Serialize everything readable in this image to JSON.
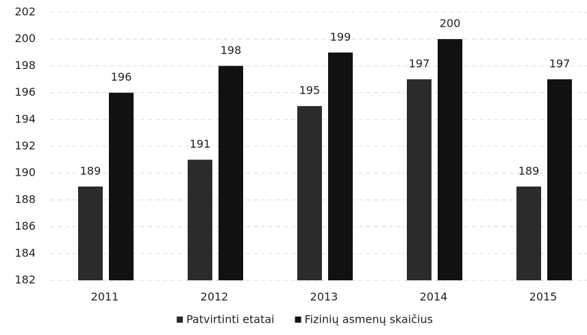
{
  "chart_data": {
    "type": "bar",
    "categories": [
      "2011",
      "2012",
      "2013",
      "2014",
      "2015"
    ],
    "series": [
      {
        "name": "Patvirtinti etatai",
        "color": "#2b2b2b",
        "values": [
          189,
          191,
          195,
          197,
          189
        ]
      },
      {
        "name": "Fizinių asmenų skaičius",
        "color": "#111111",
        "values": [
          196,
          198,
          199,
          200,
          197
        ]
      }
    ],
    "ylim": [
      182,
      202
    ],
    "yticks": [
      182,
      184,
      186,
      188,
      190,
      192,
      194,
      196,
      198,
      200,
      202
    ],
    "grid": true,
    "legend": "bottom"
  }
}
